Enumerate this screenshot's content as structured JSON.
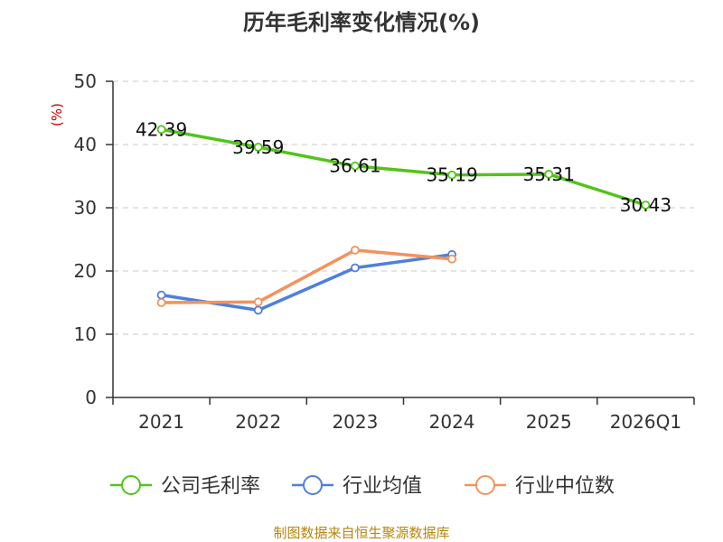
{
  "source_text": "制图数据来自恒生聚源数据库",
  "chart_data": {
    "type": "line",
    "title": "历年毛利率变化情况(%)",
    "ylabel": "(%)",
    "xlabel": "",
    "categories": [
      "2021",
      "2022",
      "2023",
      "2024",
      "2025",
      "2026Q1"
    ],
    "ylim": [
      0,
      50
    ],
    "yticks": [
      0,
      10,
      20,
      30,
      40,
      50
    ],
    "grid": true,
    "legend_position": "bottom",
    "series": [
      {
        "name": "公司毛利率",
        "color": "#52c41a",
        "values": [
          42.39,
          39.59,
          36.61,
          35.19,
          35.31,
          30.43
        ],
        "labels": [
          "42.39",
          "39.59",
          "36.61",
          "35.19",
          "35.31",
          "30.43"
        ],
        "show_labels": true
      },
      {
        "name": "行业均值",
        "color": "#4f7fdc",
        "values": [
          16.2,
          13.8,
          20.5,
          22.6,
          null,
          null
        ],
        "show_labels": false
      },
      {
        "name": "行业中位数",
        "color": "#f4925b",
        "values": [
          15.0,
          15.1,
          23.3,
          21.9,
          null,
          null
        ],
        "show_labels": false
      }
    ]
  }
}
